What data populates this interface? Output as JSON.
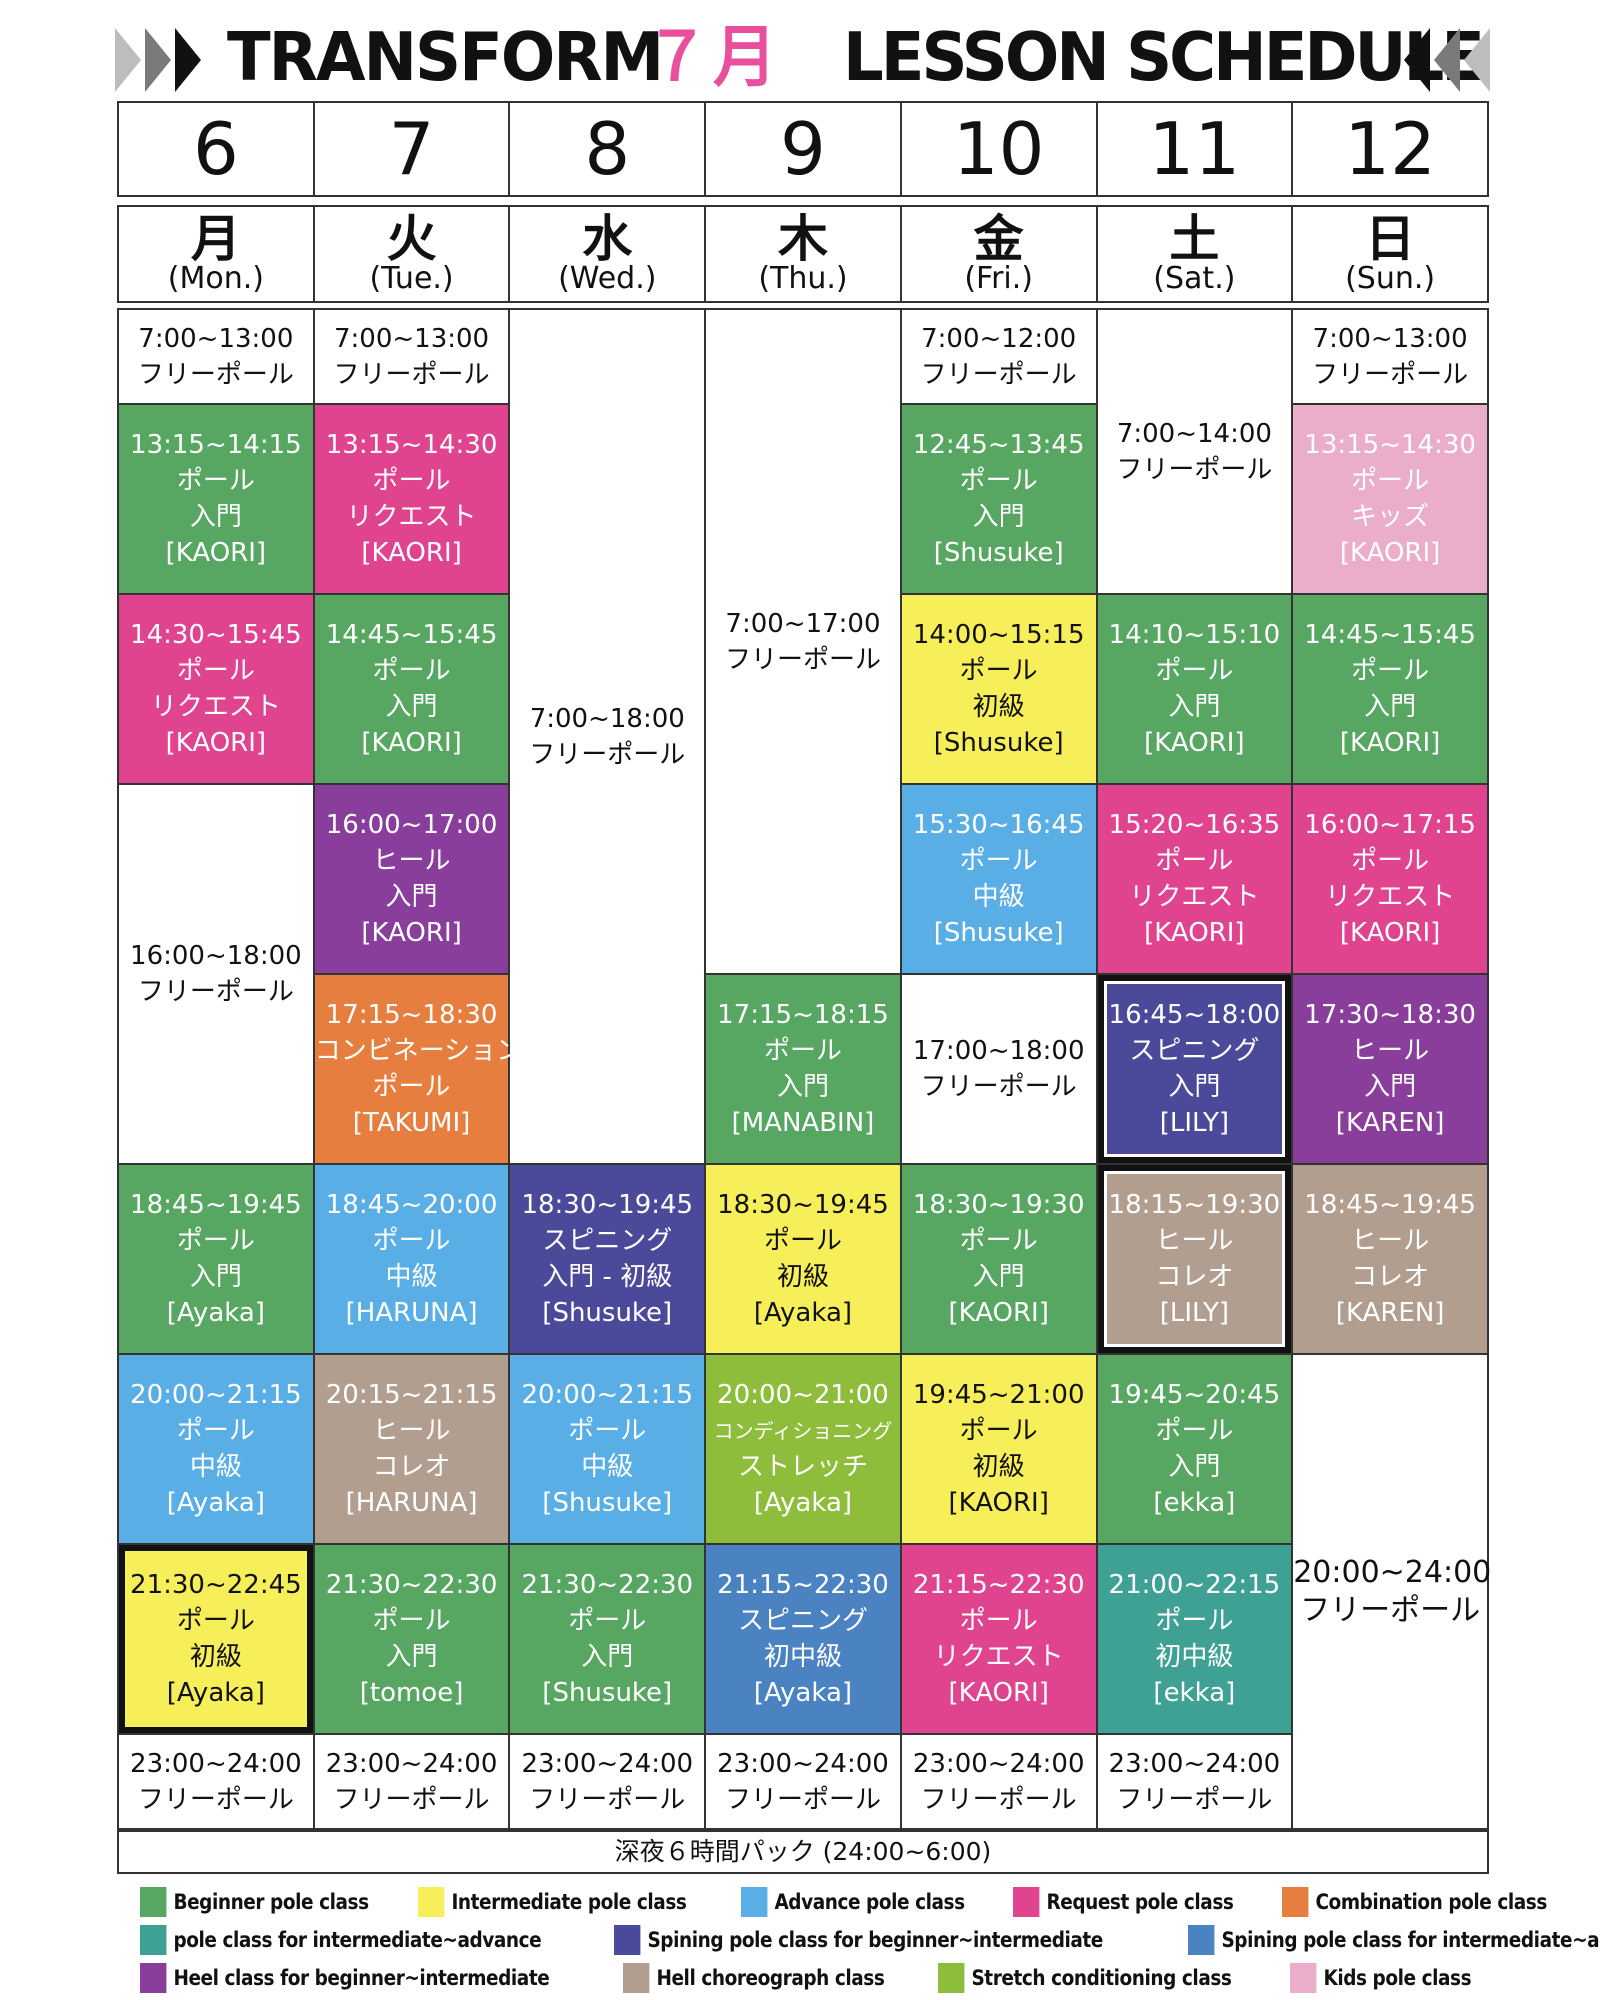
{
  "header": {
    "brand": "TRANSFORM",
    "month": "７月",
    "title": "LESSON SCHEDULE"
  },
  "dates": [
    "6",
    "7",
    "8",
    "9",
    "10",
    "11",
    "12"
  ],
  "days": [
    {
      "kanji": "月",
      "en": "(Mon.)"
    },
    {
      "kanji": "火",
      "en": "(Tue.)"
    },
    {
      "kanji": "水",
      "en": "(Wed.)"
    },
    {
      "kanji": "木",
      "en": "(Thu.)"
    },
    {
      "kanji": "金",
      "en": "(Fri.)"
    },
    {
      "kanji": "土",
      "en": "(Sat.)"
    },
    {
      "kanji": "日",
      "en": "(Sun.)"
    }
  ],
  "colors": {
    "beginner": "#57a763",
    "intermediate": "#f7ef5a",
    "advance": "#5aaee6",
    "request": "#e0448f",
    "combination": "#e57e3e",
    "intermediate_advance": "#3fa094",
    "spin_beginner": "#4b4a9a",
    "spin_intermediate": "#4a82c2",
    "heel": "#8a3e9b",
    "heel_choreo": "#b19e8f",
    "stretch": "#8dbd3a",
    "kids": "#eaaecb",
    "free": "#ffffff"
  },
  "schedule": {
    "mon": [
      {
        "lines": [
          "7:00~13:00",
          "フリーポール"
        ]
      },
      {
        "lines": [
          "13:15~14:15",
          "ポール",
          "入門",
          "[KAORI]"
        ]
      },
      {
        "lines": [
          "14:30~15:45",
          "ポール",
          "リクエスト",
          "[KAORI]"
        ]
      },
      {
        "lines": [
          "16:00~18:00",
          "フリーポール"
        ]
      },
      {
        "lines": [
          "18:45~19:45",
          "ポール",
          "入門",
          "[Ayaka]"
        ]
      },
      {
        "lines": [
          "20:00~21:15",
          "ポール",
          "中級",
          "[Ayaka]"
        ]
      },
      {
        "lines": [
          "21:30~22:45",
          "ポール",
          "初級",
          "[Ayaka]"
        ]
      },
      {
        "lines": [
          "23:00~24:00",
          "フリーポール"
        ]
      }
    ],
    "tue": [
      {
        "lines": [
          "7:00~13:00",
          "フリーポール"
        ]
      },
      {
        "lines": [
          "13:15~14:30",
          "ポール",
          "リクエスト",
          "[KAORI]"
        ]
      },
      {
        "lines": [
          "14:45~15:45",
          "ポール",
          "入門",
          "[KAORI]"
        ]
      },
      {
        "lines": [
          "16:00~17:00",
          "ヒール",
          "入門",
          "[KAORI]"
        ]
      },
      {
        "lines": [
          "17:15~18:30",
          "コンビネーション",
          "ポール",
          "[TAKUMI]"
        ]
      },
      {
        "lines": [
          "18:45~20:00",
          "ポール",
          "中級",
          "[HARUNA]"
        ]
      },
      {
        "lines": [
          "20:15~21:15",
          "ヒール",
          "コレオ",
          "[HARUNA]"
        ]
      },
      {
        "lines": [
          "21:30~22:30",
          "ポール",
          "入門",
          "[tomoe]"
        ]
      },
      {
        "lines": [
          "23:00~24:00",
          "フリーポール"
        ]
      }
    ],
    "wed": [
      {
        "lines": [
          "7:00~18:00",
          "フリーポール"
        ]
      },
      {
        "lines": [
          "18:30~19:45",
          "スピニング",
          "入門 - 初級",
          "[Shusuke]"
        ]
      },
      {
        "lines": [
          "20:00~21:15",
          "ポール",
          "中級",
          "[Shusuke]"
        ]
      },
      {
        "lines": [
          "21:30~22:30",
          "ポール",
          "入門",
          "[Shusuke]"
        ]
      },
      {
        "lines": [
          "23:00~24:00",
          "フリーポール"
        ]
      }
    ],
    "thu": [
      {
        "lines": [
          "7:00~17:00",
          "フリーポール"
        ]
      },
      {
        "lines": [
          "17:15~18:15",
          "ポール",
          "入門",
          "[MANABIN]"
        ]
      },
      {
        "lines": [
          "18:30~19:45",
          "ポール",
          "初級",
          "[Ayaka]"
        ]
      },
      {
        "lines": [
          "20:00~21:00",
          "コンディショニング",
          "ストレッチ",
          "[Ayaka]"
        ]
      },
      {
        "lines": [
          "21:15~22:30",
          "スピニング",
          "初中級",
          "[Ayaka]"
        ]
      },
      {
        "lines": [
          "23:00~24:00",
          "フリーポール"
        ]
      }
    ],
    "fri": [
      {
        "lines": [
          "7:00~12:00",
          "フリーポール"
        ]
      },
      {
        "lines": [
          "12:45~13:45",
          "ポール",
          "入門",
          "[Shusuke]"
        ]
      },
      {
        "lines": [
          "14:00~15:15",
          "ポール",
          "初級",
          "[Shusuke]"
        ]
      },
      {
        "lines": [
          "15:30~16:45",
          "ポール",
          "中級",
          "[Shusuke]"
        ]
      },
      {
        "lines": [
          "17:00~18:00",
          "フリーポール"
        ]
      },
      {
        "lines": [
          "18:30~19:30",
          "ポール",
          "入門",
          "[KAORI]"
        ]
      },
      {
        "lines": [
          "19:45~21:00",
          "ポール",
          "初級",
          "[KAORI]"
        ]
      },
      {
        "lines": [
          "21:15~22:30",
          "ポール",
          "リクエスト",
          "[KAORI]"
        ]
      },
      {
        "lines": [
          "23:00~24:00",
          "フリーポール"
        ]
      }
    ],
    "sat": [
      {
        "lines": [
          "7:00~14:00",
          "フリーポール"
        ]
      },
      {
        "lines": [
          "14:10~15:10",
          "ポール",
          "入門",
          "[KAORI]"
        ]
      },
      {
        "lines": [
          "15:20~16:35",
          "ポール",
          "リクエスト",
          "[KAORI]"
        ]
      },
      {
        "lines": [
          "16:45~18:00",
          "スピニング",
          "入門",
          "[LILY]"
        ]
      },
      {
        "lines": [
          "18:15~19:30",
          "ヒール",
          "コレオ",
          "[LILY]"
        ]
      },
      {
        "lines": [
          "19:45~20:45",
          "ポール",
          "入門",
          "[ekka]"
        ]
      },
      {
        "lines": [
          "21:00~22:15",
          "ポール",
          "初中級",
          "[ekka]"
        ]
      },
      {
        "lines": [
          "23:00~24:00",
          "フリーポール"
        ]
      }
    ],
    "sun": [
      {
        "lines": [
          "7:00~13:00",
          "フリーポール"
        ]
      },
      {
        "lines": [
          "13:15~14:30",
          "ポール",
          "キッズ",
          "[KAORI]"
        ]
      },
      {
        "lines": [
          "14:45~15:45",
          "ポール",
          "入門",
          "[KAORI]"
        ]
      },
      {
        "lines": [
          "16:00~17:15",
          "ポール",
          "リクエスト",
          "[KAORI]"
        ]
      },
      {
        "lines": [
          "17:30~18:30",
          "ヒール",
          "入門",
          "[KAREN]"
        ]
      },
      {
        "lines": [
          "18:45~19:45",
          "ヒール",
          "コレオ",
          "[KAREN]"
        ]
      },
      {
        "lines": [
          "20:00~24:00",
          "フリーポール"
        ]
      }
    ]
  },
  "footer_note": "深夜６時間パック (24:00~6:00)",
  "legend": [
    {
      "label": "Beginner pole class",
      "color": "#57a763"
    },
    {
      "label": "Intermediate pole class",
      "color": "#f7ef5a"
    },
    {
      "label": "Advance pole class",
      "color": "#5aaee6"
    },
    {
      "label": "Request pole class",
      "color": "#e0448f"
    },
    {
      "label": "Combination pole class",
      "color": "#e57e3e"
    },
    {
      "label": "pole class for intermediate~advance",
      "color": "#3fa094"
    },
    {
      "label": "Spining pole class for beginner~intermediate",
      "color": "#4b4a9a"
    },
    {
      "label": "Spining pole class for intermediate~advance",
      "color": "#4a82c2"
    },
    {
      "label": "Heel class for beginner~intermediate",
      "color": "#8a3e9b"
    },
    {
      "label": "Hell choreograph class",
      "color": "#b19e8f"
    },
    {
      "label": "Stretch conditioning class",
      "color": "#8dbd3a"
    },
    {
      "label": "Kids pole class",
      "color": "#eaaecb"
    }
  ]
}
